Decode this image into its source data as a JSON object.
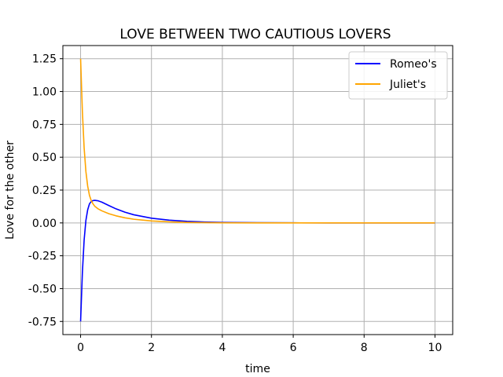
{
  "chart_data": {
    "type": "line",
    "title": "LOVE BETWEEN TWO CAUTIOUS LOVERS",
    "xlabel": "time",
    "ylabel": "Love for the other",
    "xlim": [
      -0.5,
      10.5
    ],
    "ylim": [
      -0.85,
      1.35
    ],
    "xticks": [
      0,
      2,
      4,
      6,
      8,
      10
    ],
    "yticks": [
      -0.75,
      -0.5,
      -0.25,
      0.0,
      0.25,
      0.5,
      0.75,
      1.0,
      1.25
    ],
    "xtick_labels": [
      "0",
      "2",
      "4",
      "6",
      "8",
      "10"
    ],
    "ytick_labels": [
      "-0.75",
      "-0.50",
      "-0.25",
      "0.00",
      "0.25",
      "0.50",
      "0.75",
      "1.00",
      "1.25"
    ],
    "grid": true,
    "legend_position": "top-right",
    "series": [
      {
        "name": "Romeo's",
        "color": "#0000ff",
        "x": [
          0,
          0.05,
          0.1,
          0.15,
          0.2,
          0.25,
          0.3,
          0.35,
          0.4,
          0.5,
          0.6,
          0.8,
          1.0,
          1.25,
          1.5,
          2.0,
          2.5,
          3.0,
          3.5,
          4.0,
          5.0,
          6.0,
          7.0,
          8.0,
          9.0,
          10.0
        ],
        "y": [
          -0.75,
          -0.38,
          -0.13,
          0.02,
          0.1,
          0.145,
          0.163,
          0.17,
          0.172,
          0.168,
          0.158,
          0.132,
          0.107,
          0.082,
          0.062,
          0.036,
          0.021,
          0.012,
          0.007,
          0.004,
          0.0015,
          0.0005,
          0.0002,
          0.0001,
          0.0,
          0.0
        ]
      },
      {
        "name": "Juliet's",
        "color": "#ffa500",
        "x": [
          0,
          0.05,
          0.1,
          0.15,
          0.2,
          0.25,
          0.3,
          0.35,
          0.4,
          0.5,
          0.6,
          0.8,
          1.0,
          1.25,
          1.5,
          2.0,
          2.5,
          3.0,
          3.5,
          4.0,
          5.0,
          6.0,
          7.0,
          8.0,
          9.0,
          10.0
        ],
        "y": [
          1.25,
          0.85,
          0.57,
          0.39,
          0.28,
          0.21,
          0.17,
          0.145,
          0.127,
          0.106,
          0.092,
          0.07,
          0.054,
          0.039,
          0.028,
          0.015,
          0.008,
          0.004,
          0.002,
          0.001,
          0.0003,
          0.0001,
          0.0,
          0.0,
          0.0,
          0.0
        ]
      }
    ]
  }
}
